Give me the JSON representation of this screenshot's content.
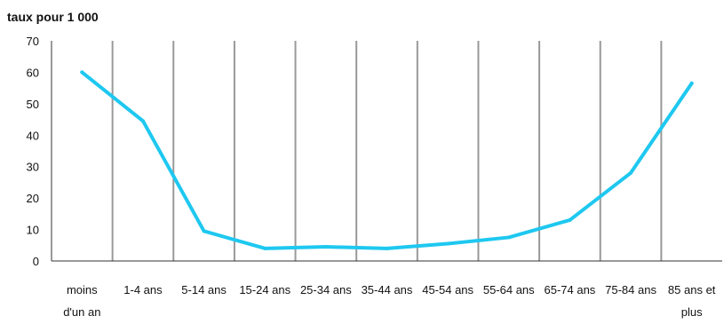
{
  "chart_data": {
    "type": "line",
    "title": "",
    "ylabel": "taux pour 1 000",
    "xlabel": "",
    "ylim": [
      0,
      70
    ],
    "yticks": [
      0,
      10,
      20,
      30,
      40,
      50,
      60,
      70
    ],
    "grid": {
      "vertical": true,
      "horizontal": false
    },
    "categories": [
      [
        "moins",
        "d'un an"
      ],
      [
        "1-4 ans"
      ],
      [
        "5-14 ans"
      ],
      [
        "15-24 ans"
      ],
      [
        "25-34 ans"
      ],
      [
        "35-44 ans"
      ],
      [
        "45-54 ans"
      ],
      [
        "55-64 ans"
      ],
      [
        "65-74 ans"
      ],
      [
        "75-84 ans"
      ],
      [
        "85 ans et",
        "plus"
      ]
    ],
    "series": [
      {
        "values": [
          60,
          44.5,
          9.5,
          4,
          4.5,
          4,
          5.5,
          7.5,
          13,
          28,
          56.5
        ],
        "color": "#1ec8f0"
      }
    ],
    "colors": {
      "line": "#1ec8f0",
      "grid": "#999999",
      "axis": "#333333"
    }
  }
}
